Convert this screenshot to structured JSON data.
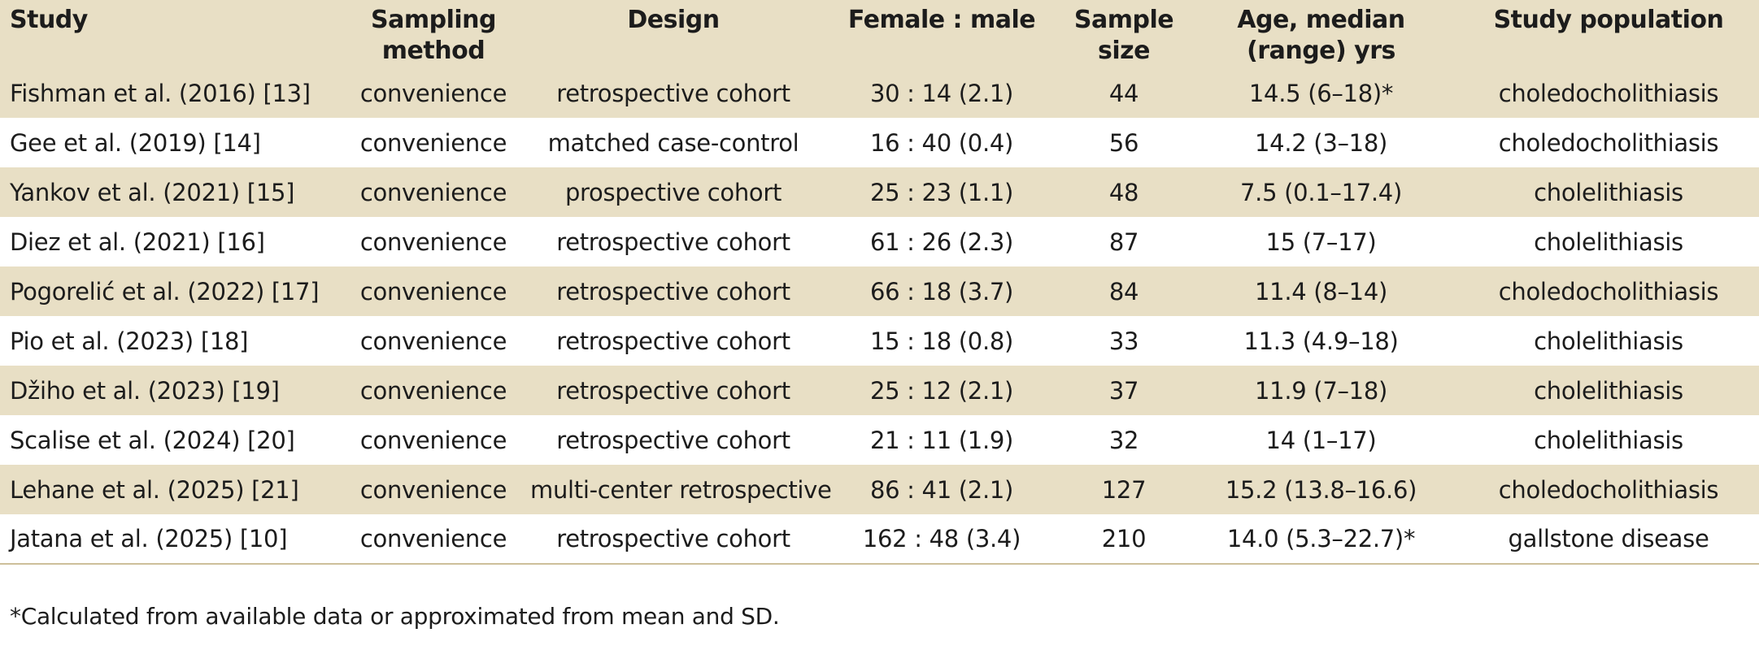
{
  "table": {
    "headers": [
      "Study",
      "Sampling method",
      "Design",
      "Female : male",
      "Sample size",
      "Age, median (range) yrs",
      "Study population"
    ],
    "header_lines": [
      [
        "Study",
        ""
      ],
      [
        "Sampling",
        "method"
      ],
      [
        "Design",
        ""
      ],
      [
        "Female : male",
        ""
      ],
      [
        "Sample",
        "size"
      ],
      [
        "Age, median",
        "(range) yrs"
      ],
      [
        "Study population",
        ""
      ]
    ],
    "rows": [
      [
        "Fishman et al. (2016) [13]",
        "convenience",
        "retrospective cohort",
        "30 : 14 (2.1)",
        "44",
        "14.5 (6–18)*",
        "choledocholithiasis"
      ],
      [
        "Gee et al. (2019) [14]",
        "convenience",
        "matched case-control",
        "16 : 40 (0.4)",
        "56",
        "14.2 (3–18)",
        "choledocholithiasis"
      ],
      [
        "Yankov et al. (2021) [15]",
        "convenience",
        "prospective cohort",
        "25 : 23 (1.1)",
        "48",
        "7.5 (0.1–17.4)",
        "cholelithiasis"
      ],
      [
        "Diez et al. (2021) [16]",
        "convenience",
        "retrospective cohort",
        "61 : 26 (2.3)",
        "87",
        "15 (7–17)",
        "cholelithiasis"
      ],
      [
        "Pogorelić et al. (2022) [17]",
        "convenience",
        "retrospective cohort",
        "66 : 18 (3.7)",
        "84",
        "11.4 (8–14)",
        "choledocholithiasis"
      ],
      [
        "Pio et al. (2023) [18]",
        "convenience",
        "retrospective cohort",
        "15 : 18 (0.8)",
        "33",
        "11.3 (4.9–18)",
        "cholelithiasis"
      ],
      [
        "Džiho et al. (2023) [19]",
        "convenience",
        "retrospective cohort",
        "25 : 12 (2.1)",
        "37",
        "11.9 (7–18)",
        "cholelithiasis"
      ],
      [
        "Scalise et al. (2024) [20]",
        "convenience",
        "retrospective cohort",
        "21 : 11 (1.9)",
        "32",
        "14 (1–17)",
        "cholelithiasis"
      ],
      [
        "Lehane et al. (2025) [21]",
        "convenience",
        "multi-center retrospective",
        "86 : 41 (2.1)",
        "127",
        "15.2 (13.8–16.6)",
        "choledocholithiasis"
      ],
      [
        "Jatana et al. (2025) [10]",
        "convenience",
        "retrospective cohort",
        "162 : 48 (3.4)",
        "210",
        "14.0 (5.3–22.7)*",
        "gallstone disease"
      ]
    ]
  },
  "footnote": "*Calculated from available data or approximated from mean and SD.",
  "colors": {
    "band": "#e8dfc5",
    "text": "#1c1c1c"
  }
}
